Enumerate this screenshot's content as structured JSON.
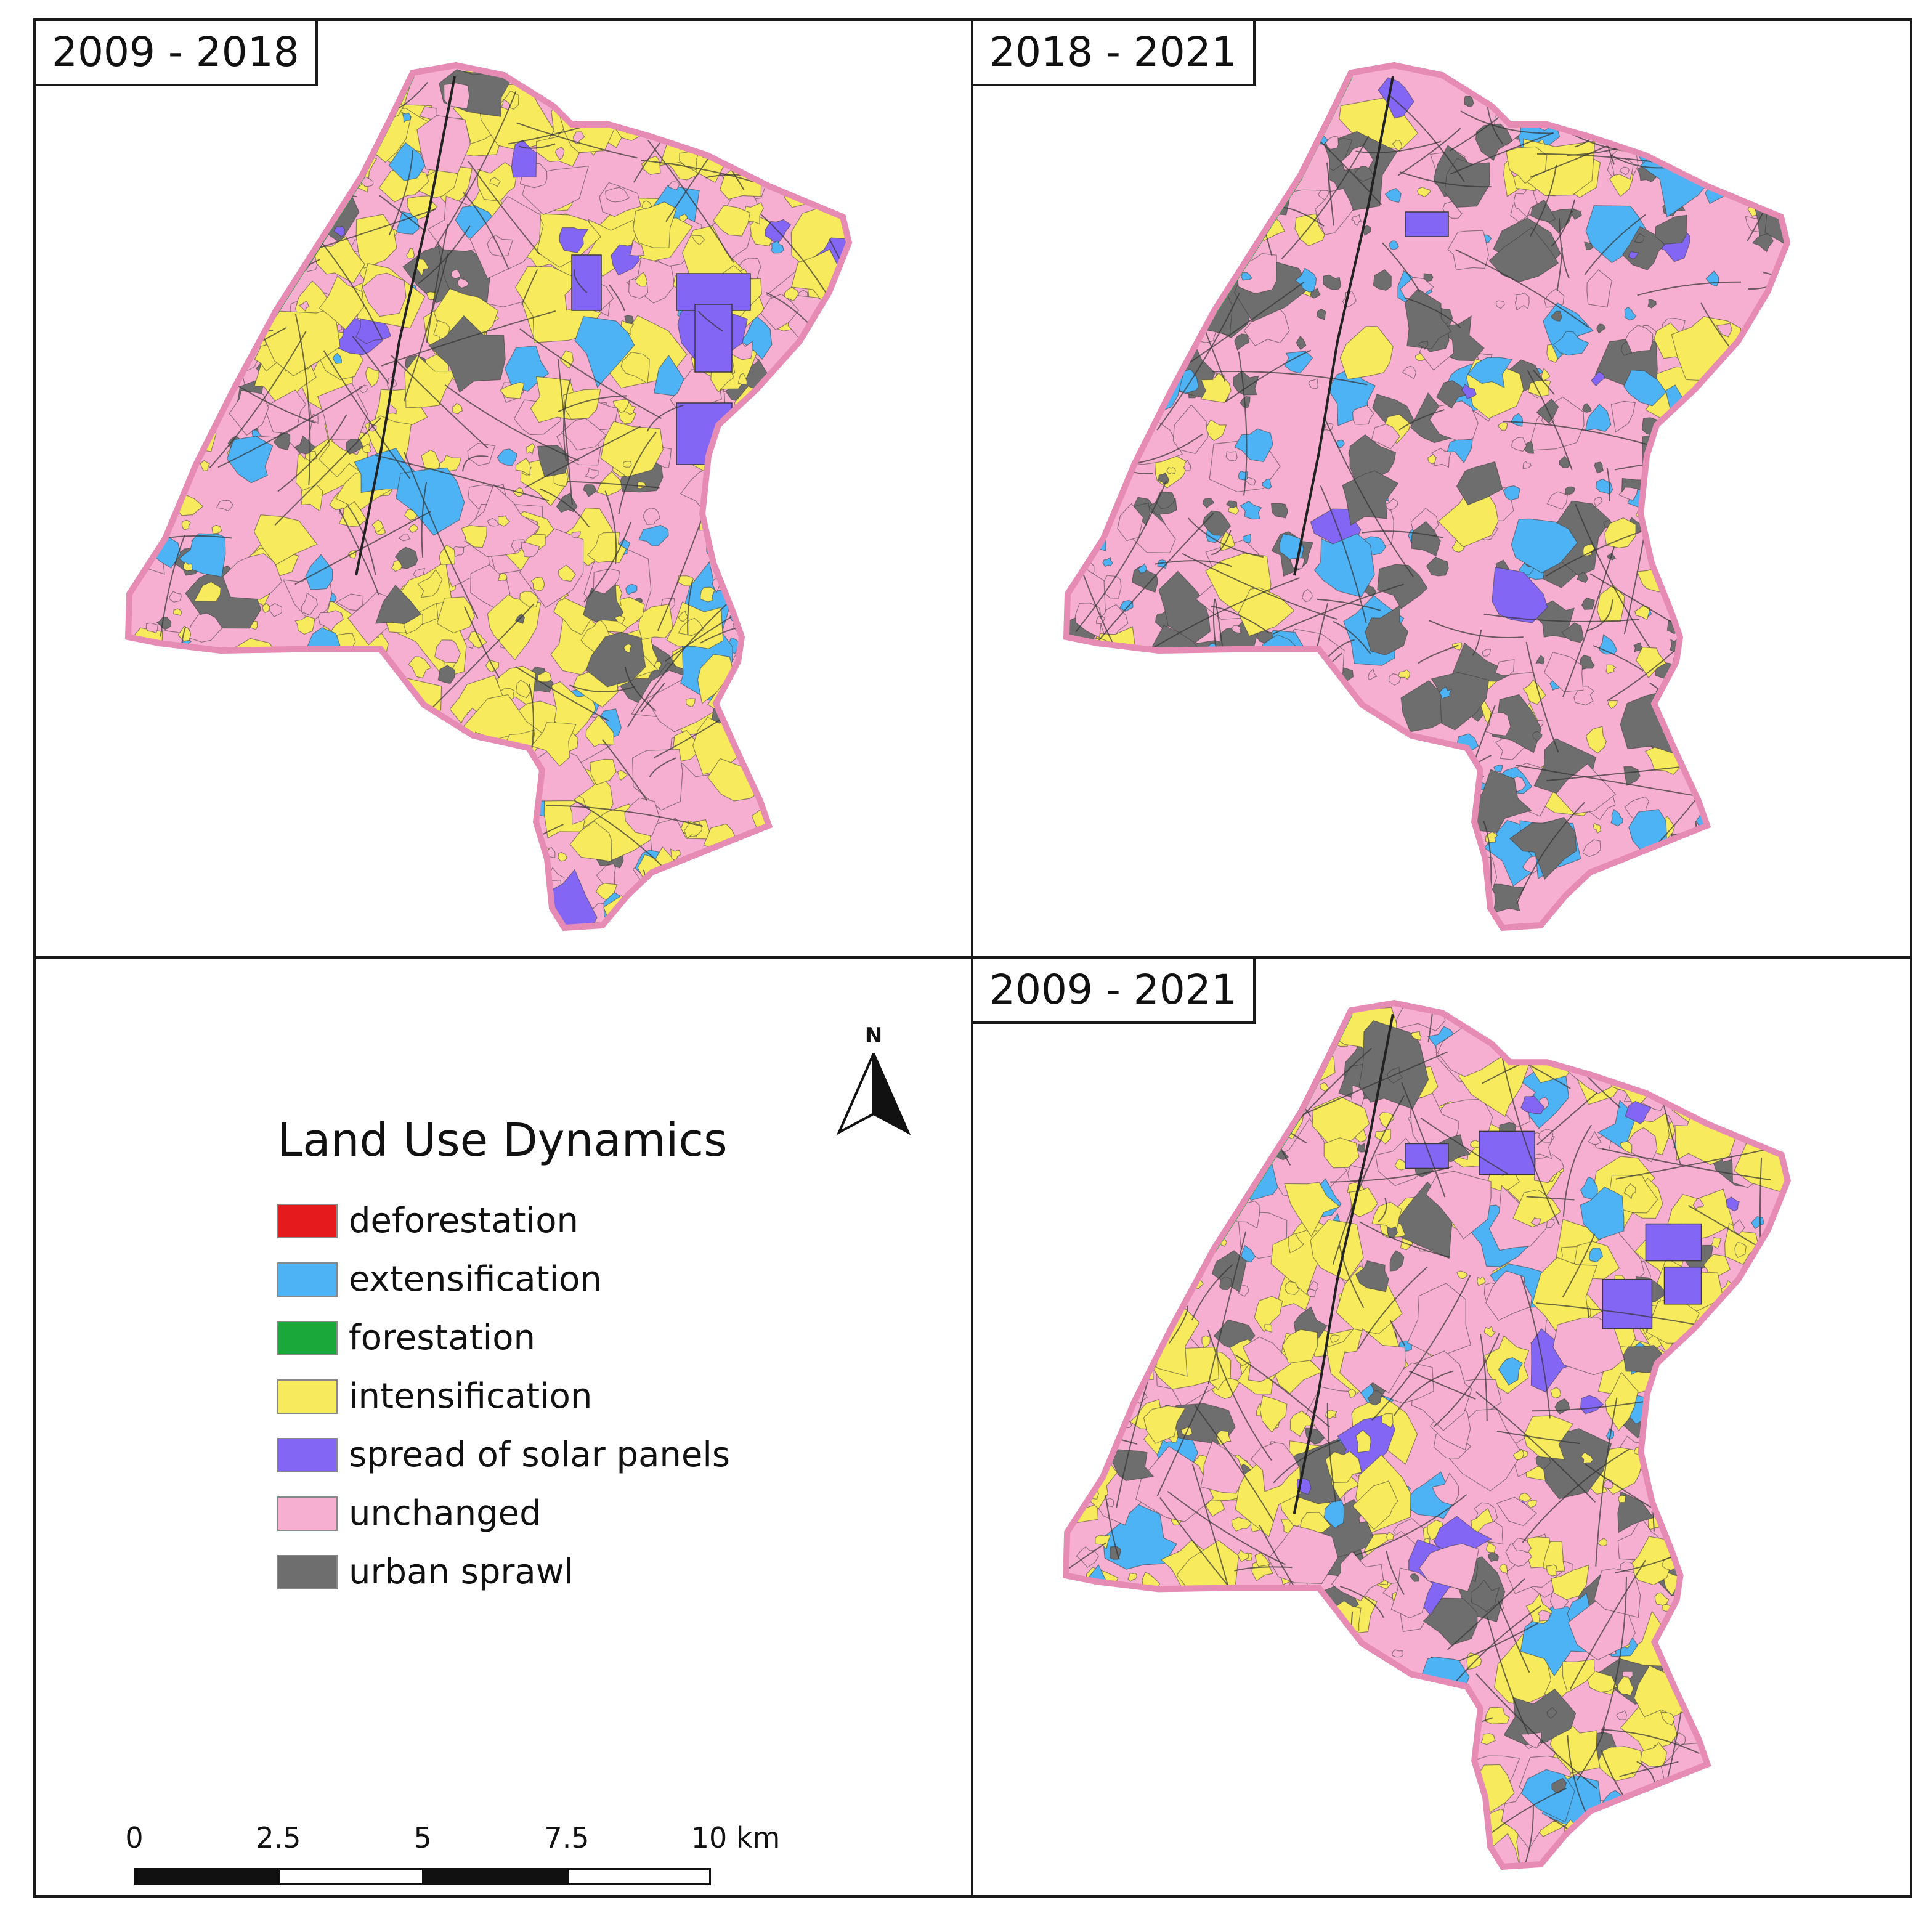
{
  "panels": [
    {
      "id": "tl",
      "period": "2009 - 2018",
      "dominant": "intensification"
    },
    {
      "id": "tr",
      "period": "2018 - 2021",
      "dominant": "unchanged"
    },
    {
      "id": "br",
      "period": "2009 - 2021",
      "dominant": "intensification"
    }
  ],
  "legend": {
    "title": "Land Use Dynamics",
    "items": [
      {
        "label": "deforestation",
        "color": "#e41a1c"
      },
      {
        "label": "extensification",
        "color": "#4db3f5"
      },
      {
        "label": "forestation",
        "color": "#1aa83a"
      },
      {
        "label": "intensification",
        "color": "#f7ea5c"
      },
      {
        "label": "spread of solar panels",
        "color": "#8466f4"
      },
      {
        "label": "unchanged",
        "color": "#f6afd0"
      },
      {
        "label": "urban sprawl",
        "color": "#6e6e6e"
      }
    ]
  },
  "north_arrow": {
    "label": "N"
  },
  "scale_bar": {
    "ticks": [
      "0",
      "2.5",
      "5",
      "7.5",
      "10 km"
    ],
    "unit": "km"
  },
  "colors": {
    "border": "#1a1a1a",
    "boundary_line": "#e58bb4",
    "road_line": "#333333"
  }
}
